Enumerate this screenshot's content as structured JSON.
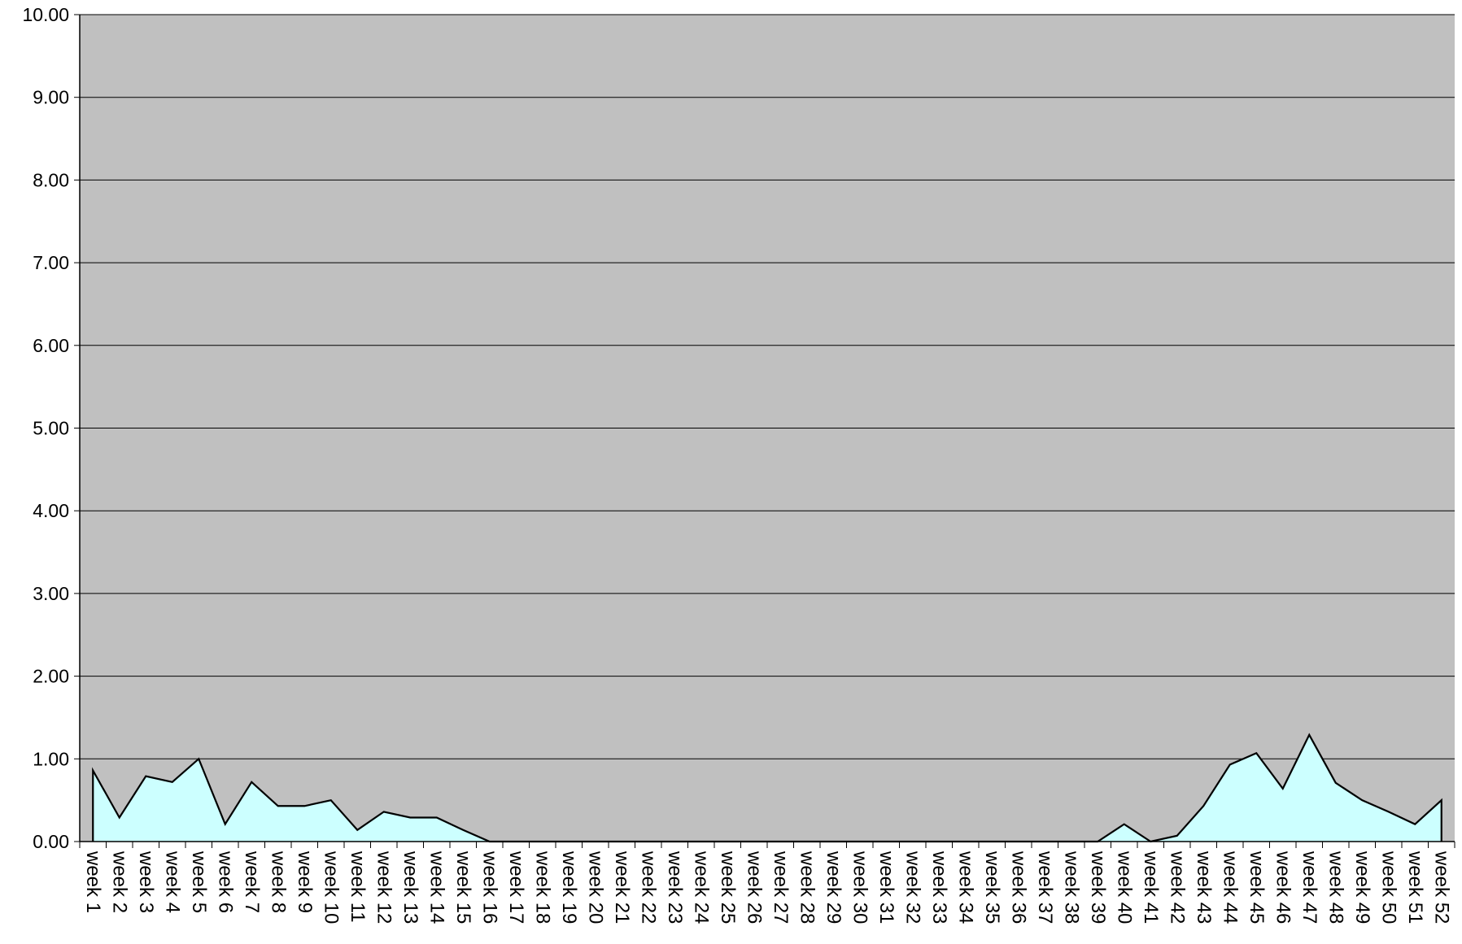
{
  "chart_data": {
    "type": "area",
    "title": "",
    "xlabel": "",
    "ylabel": "",
    "ylim": [
      0,
      10
    ],
    "yticks": [
      "0.00",
      "1.00",
      "2.00",
      "3.00",
      "4.00",
      "5.00",
      "6.00",
      "7.00",
      "8.00",
      "9.00",
      "10.00"
    ],
    "grid": true,
    "legend": "none",
    "categories": [
      "week 1",
      "week 2",
      "week 3",
      "week 4",
      "week 5",
      "week 6",
      "week 7",
      "week 8",
      "week 9",
      "week 10",
      "week 11",
      "week 12",
      "week 13",
      "week 14",
      "week 15",
      "week 16",
      "week 17",
      "week 18",
      "week 19",
      "week 20",
      "week 21",
      "week 22",
      "week 23",
      "week 24",
      "week 25",
      "week 26",
      "week 27",
      "week 28",
      "week 29",
      "week 30",
      "week 31",
      "week 32",
      "week 33",
      "week 34",
      "week 35",
      "week 36",
      "week 37",
      "week 38",
      "week 39",
      "week 40",
      "week 41",
      "week 42",
      "week 43",
      "week 44",
      "week 45",
      "week 46",
      "week 47",
      "week 48",
      "week 49",
      "week 50",
      "week 51",
      "week 52"
    ],
    "values": [
      0.86,
      0.29,
      0.79,
      0.72,
      1.0,
      0.21,
      0.72,
      0.43,
      0.43,
      0.5,
      0.14,
      0.36,
      0.29,
      0.29,
      0.14,
      0.0,
      0.0,
      0.0,
      0.0,
      0.0,
      0.0,
      0.0,
      0.0,
      0.0,
      0.0,
      0.0,
      0.0,
      0.0,
      0.0,
      0.0,
      0.0,
      0.0,
      0.0,
      0.0,
      0.0,
      0.0,
      0.0,
      0.0,
      0.0,
      0.21,
      0.0,
      0.07,
      0.43,
      0.93,
      1.07,
      0.64,
      1.29,
      0.71,
      0.5,
      0.36,
      0.21,
      0.5
    ],
    "colors": {
      "plot_background": "#c0c0c0",
      "area_fill": "#ccffff",
      "line": "#000000",
      "gridline": "#000000"
    }
  }
}
